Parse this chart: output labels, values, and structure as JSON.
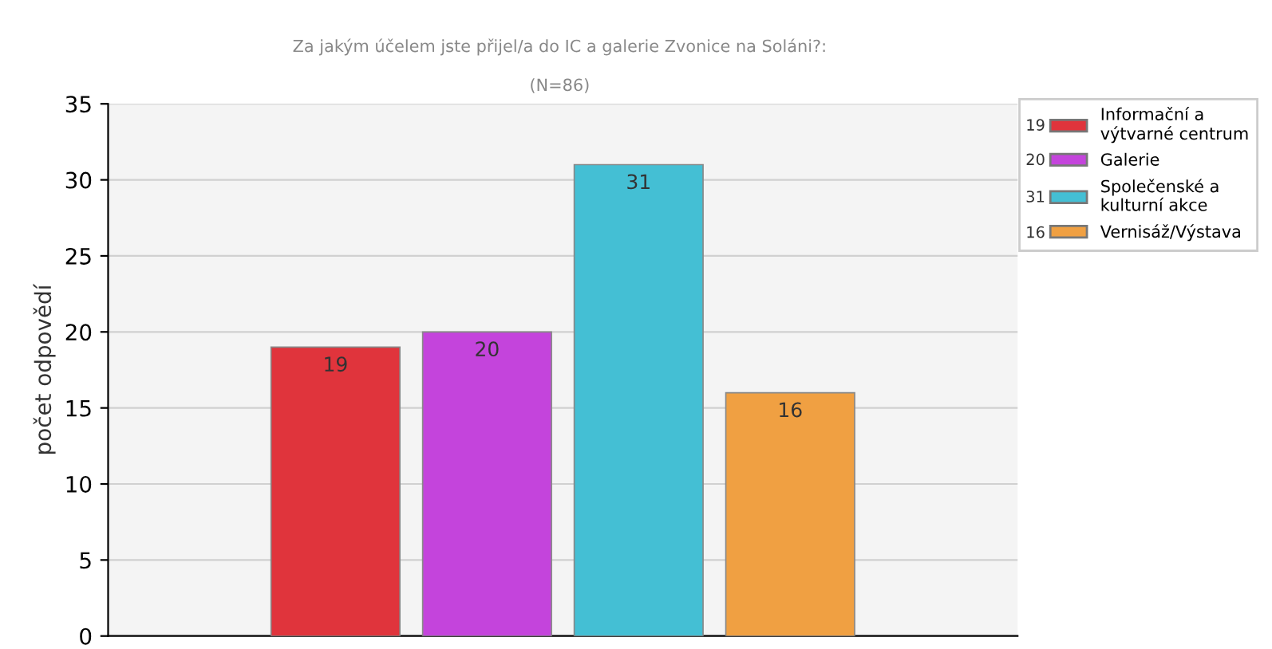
{
  "chart_data": {
    "type": "bar",
    "title": "Za jakým účelem jste přijel/a do IC a galerie Zvonice na Soláni?:",
    "subtitle": "(N=86)",
    "ylabel": "počet odpovědí",
    "categories": [
      null,
      null,
      null,
      null
    ],
    "series": [
      {
        "name": "Informační a výtvarné centrum",
        "color": "#e0343c",
        "values": [
          19,
          null,
          null,
          null
        ]
      },
      {
        "name": "Galerie",
        "color": "#c444dc",
        "values": [
          null,
          20,
          null,
          null
        ]
      },
      {
        "name": "Společenské a kulturní akce",
        "color": "#44bfd4",
        "values": [
          null,
          null,
          31,
          null
        ]
      },
      {
        "name": "Vernisáž/Výstava",
        "color": "#f0a042",
        "values": [
          null,
          null,
          null,
          16
        ]
      }
    ],
    "annotations": [
      "19",
      "20",
      "31",
      "16"
    ],
    "ylim": [
      0,
      35
    ],
    "yticks": [
      0,
      5,
      10,
      15,
      20,
      25,
      30,
      35
    ],
    "grid": "y",
    "legend": "top right",
    "data_labels": true
  }
}
